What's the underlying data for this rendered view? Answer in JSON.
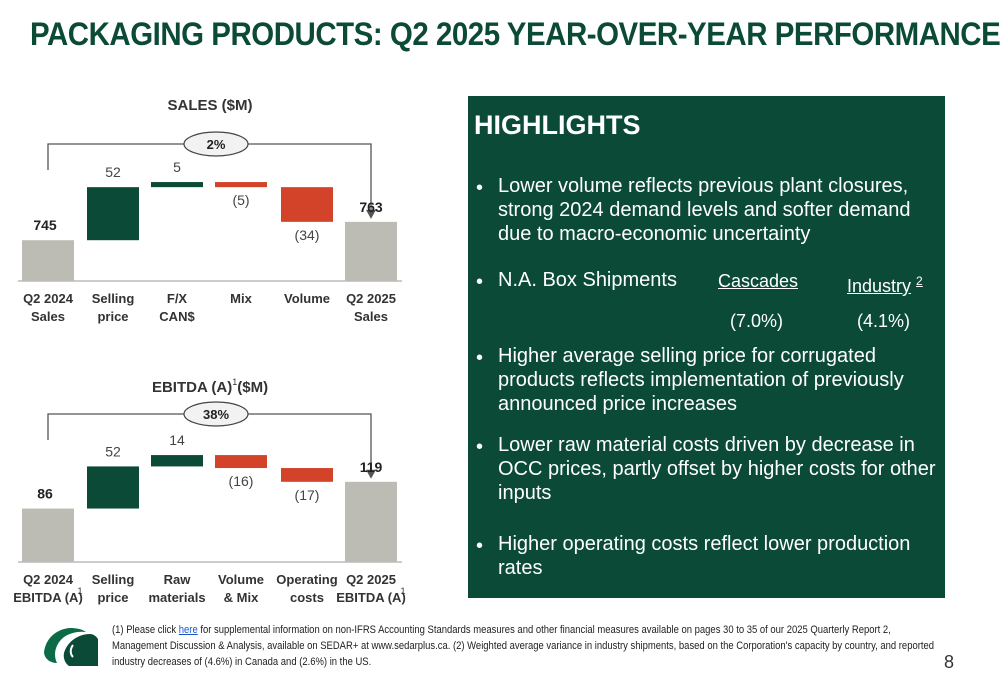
{
  "page": {
    "title": "PACKAGING PRODUCTS: Q2 2025 YEAR-OVER-YEAR PERFORMANCE",
    "page_number": "8"
  },
  "colors": {
    "brand_green": "#0b4a36",
    "decrease_red": "#d2432a",
    "total_gray": "#bcbcb4"
  },
  "chart_data": [
    {
      "type": "bar",
      "subtype": "waterfall",
      "title": "SALES ($M)",
      "title_superscript": "",
      "growth_badge": "2%",
      "categories": [
        {
          "line1": "Q2 2024",
          "line2": "Sales",
          "sup": ""
        },
        {
          "line1": "Selling",
          "line2": "price",
          "sup": ""
        },
        {
          "line1": "F/X",
          "line2": "CAN$",
          "sup": ""
        },
        {
          "line1": "Mix",
          "line2": "",
          "sup": ""
        },
        {
          "line1": "Volume",
          "line2": "",
          "sup": ""
        },
        {
          "line1": "Q2 2025",
          "line2": "Sales",
          "sup": ""
        }
      ],
      "values": [
        745,
        52,
        5,
        -5,
        -34,
        763
      ],
      "kinds": [
        "total",
        "increase",
        "increase",
        "decrease",
        "decrease",
        "total"
      ],
      "value_labels": [
        "745",
        "52",
        "5",
        "(5)",
        "(34)",
        "763"
      ]
    },
    {
      "type": "bar",
      "subtype": "waterfall",
      "title": "EBITDA (A)",
      "title_superscript": "1",
      "title_suffix": "($M)",
      "growth_badge": "38%",
      "categories": [
        {
          "line1": "Q2 2024",
          "line2": "EBITDA (A)",
          "sup": "1"
        },
        {
          "line1": "Selling",
          "line2": "price",
          "sup": ""
        },
        {
          "line1": "Raw",
          "line2": "materials",
          "sup": ""
        },
        {
          "line1": "Volume",
          "line2": "& Mix",
          "sup": ""
        },
        {
          "line1": "Operating",
          "line2": "costs",
          "sup": ""
        },
        {
          "line1": "Q2 2025",
          "line2": "EBITDA (A)",
          "sup": "1"
        }
      ],
      "values": [
        86,
        52,
        14,
        -16,
        -17,
        119
      ],
      "kinds": [
        "total",
        "increase",
        "increase",
        "decrease",
        "decrease",
        "total"
      ],
      "value_labels": [
        "86",
        "52",
        "14",
        "(16)",
        "(17)",
        "119"
      ]
    }
  ],
  "highlights": {
    "title": "HIGHLIGHTS",
    "bullet_char": "•",
    "bullet1": "Lower volume reflects previous plant closures, strong 2024 demand levels and softer demand due to macro-economic uncertainty",
    "bullet2_label": "N.A. Box Shipments",
    "bullet2_col1": "Cascades",
    "bullet2_col2": "Industry",
    "bullet2_col2_sup": "2",
    "bullet2_val1": "(7.0%)",
    "bullet2_val2": "(4.1%)",
    "bullet3": "Higher average selling price for corrugated products reflects implementation of previously announced price increases",
    "bullet4": "Lower raw material costs driven by decrease in OCC prices, partly offset by higher costs for other inputs",
    "bullet5": "Higher operating costs reflect lower production rates"
  },
  "footnote": {
    "part1": "(1) Please click ",
    "link": "here",
    "part2": " for supplemental information on non-IFRS Accounting Standards measures and other financial measures available on pages 30 to 35 of our 2025 Quarterly Report 2, Management Discussion & Analysis, available on SEDAR+ at www.sedarplus.ca. (2) Weighted average variance in industry shipments, based on the Corporation's capacity by country, and reported industry decreases of (4.6%) in Canada and  (2.6%) in the US."
  }
}
